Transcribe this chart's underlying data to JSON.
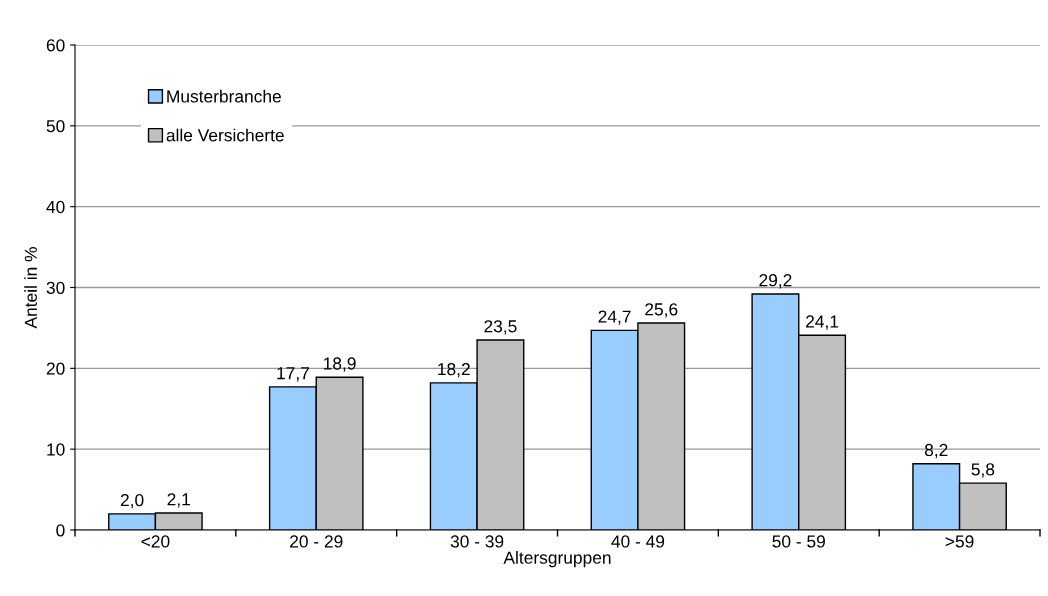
{
  "chart_data": {
    "type": "bar",
    "xlabel": "Altersgruppen",
    "ylabel": "Anteil in %",
    "categories": [
      "<20",
      "20 - 29",
      "30 - 39",
      "40 - 49",
      "50 - 59",
      ">59"
    ],
    "series": [
      {
        "name": "Musterbranche",
        "color": "#99ccff",
        "values": [
          2.0,
          17.7,
          18.2,
          24.7,
          29.2,
          8.2
        ],
        "value_labels": [
          "2,0",
          "17,7",
          "18,2",
          "24,7",
          "29,2",
          "8,2"
        ]
      },
      {
        "name": "alle Versicherte",
        "color": "#c0c0c0",
        "values": [
          2.1,
          18.9,
          23.5,
          25.6,
          24.1,
          5.8
        ],
        "value_labels": [
          "2,1",
          "18,9",
          "23,5",
          "25,6",
          "24,1",
          "5,8"
        ]
      }
    ],
    "ylim": [
      0,
      60
    ],
    "yticks": [
      0,
      10,
      20,
      30,
      40,
      50,
      60
    ],
    "grid": "y",
    "legend": "top left"
  }
}
